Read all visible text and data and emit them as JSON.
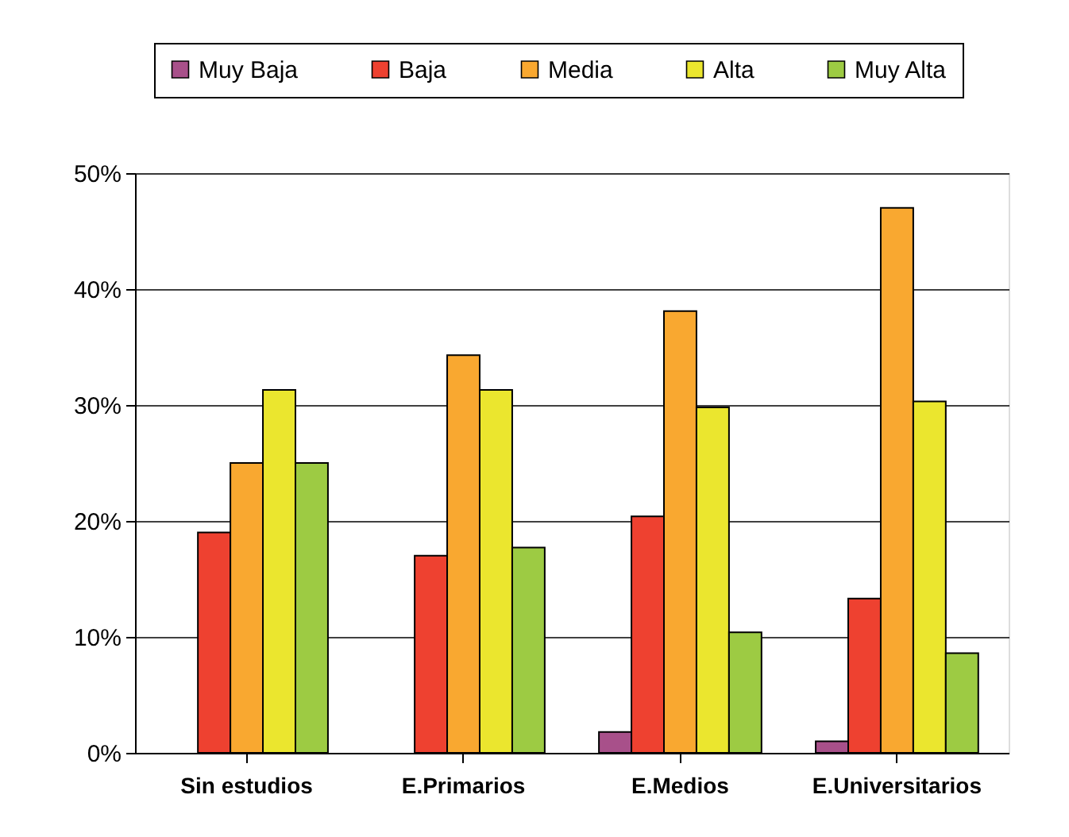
{
  "chart_data": {
    "type": "bar",
    "categories": [
      "Sin estudios",
      "E.Primarios",
      "E.Medios",
      "E.Universitarios"
    ],
    "series": [
      {
        "name": "Muy Baja",
        "color": "#a8508a",
        "values": [
          null,
          null,
          1.8,
          1.0
        ]
      },
      {
        "name": "Baja",
        "color": "#ee4130",
        "values": [
          19,
          17,
          20.4,
          13.3
        ]
      },
      {
        "name": "Media",
        "color": "#f9a830",
        "values": [
          25,
          34.3,
          38.1,
          47
        ]
      },
      {
        "name": "Alta",
        "color": "#ebe62e",
        "values": [
          31.3,
          31.3,
          29.8,
          30.3
        ]
      },
      {
        "name": "Muy Alta",
        "color": "#9dcb43",
        "values": [
          25,
          17.7,
          10.4,
          8.6
        ]
      }
    ],
    "ylim": [
      0,
      50
    ],
    "yticks": [
      {
        "value": 0,
        "label": "0%"
      },
      {
        "value": 10,
        "label": "10%"
      },
      {
        "value": 20,
        "label": "20%"
      },
      {
        "value": 30,
        "label": "30%"
      },
      {
        "value": 40,
        "label": "40%"
      },
      {
        "value": 50,
        "label": "50%"
      }
    ],
    "grid": "y",
    "legend": "top"
  }
}
